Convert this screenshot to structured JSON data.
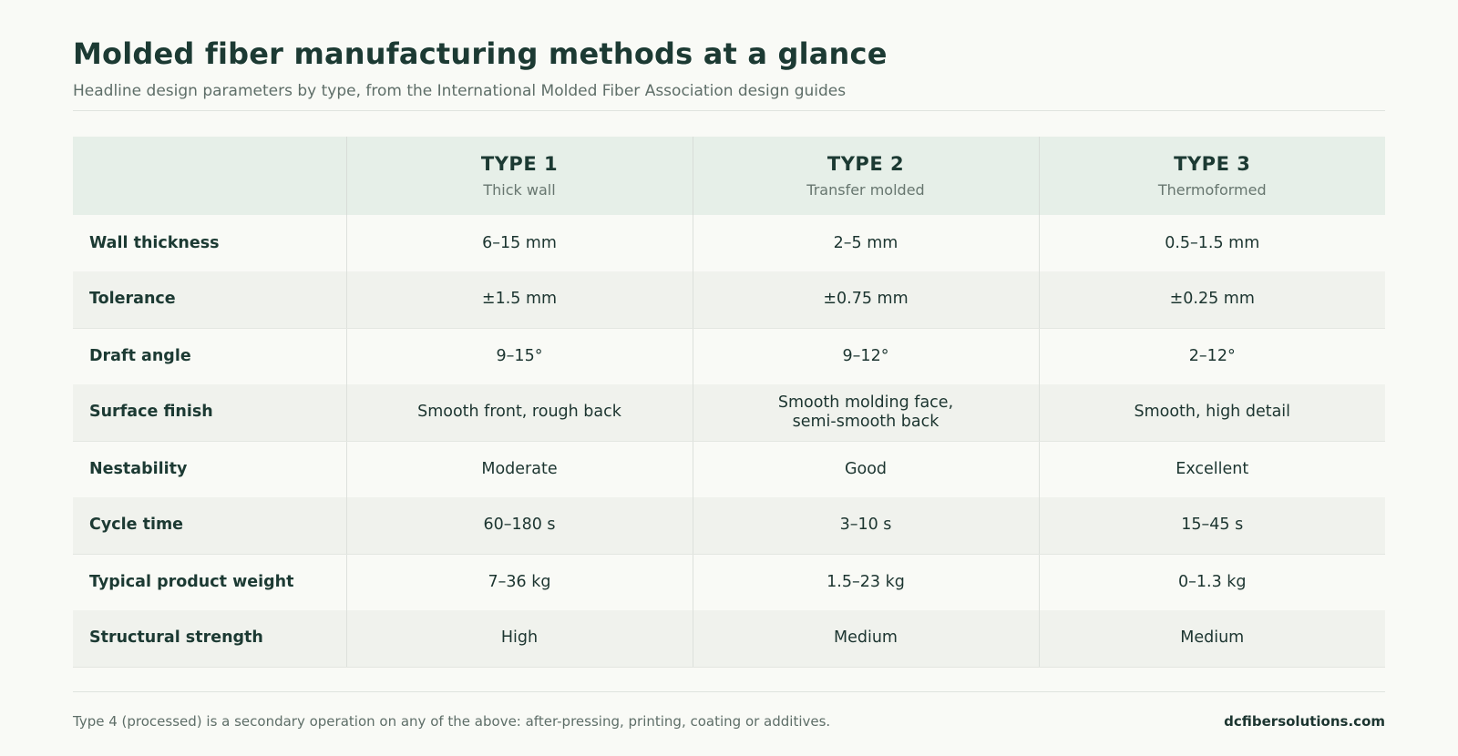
{
  "header": {
    "title": "Molded fiber manufacturing methods at a glance",
    "subtitle": "Headline design parameters by type, from the International Molded Fiber Association design guides"
  },
  "table": {
    "columns": [
      {
        "name": "TYPE 1",
        "sub": "Thick wall"
      },
      {
        "name": "TYPE 2",
        "sub": "Transfer molded"
      },
      {
        "name": "TYPE 3",
        "sub": "Thermoformed"
      }
    ],
    "rows": [
      {
        "label": "Wall thickness",
        "cells": [
          "6–15 mm",
          "2–5 mm",
          "0.5–1.5 mm"
        ]
      },
      {
        "label": "Tolerance",
        "cells": [
          "±1.5 mm",
          "±0.75 mm",
          "±0.25 mm"
        ]
      },
      {
        "label": "Draft angle",
        "cells": [
          "9–15°",
          "9–12°",
          "2–12°"
        ]
      },
      {
        "label": "Surface finish",
        "cells": [
          "Smooth front, rough back",
          "Smooth molding face,\nsemi-smooth back",
          "Smooth, high detail"
        ]
      },
      {
        "label": "Nestability",
        "cells": [
          "Moderate",
          "Good",
          "Excellent"
        ]
      },
      {
        "label": "Cycle time",
        "cells": [
          "60–180 s",
          "3–10 s",
          "15–45 s"
        ]
      },
      {
        "label": "Typical product weight",
        "cells": [
          "7–36 kg",
          "1.5–23 kg",
          "0–1.3 kg"
        ]
      },
      {
        "label": "Structural strength",
        "cells": [
          "High",
          "Medium",
          "Medium"
        ]
      }
    ]
  },
  "footer": {
    "note": "Type 4 (processed) is a secondary operation on any of the above: after-pressing, printing, coating or additives.",
    "site": "dcfibersolutions.com"
  }
}
